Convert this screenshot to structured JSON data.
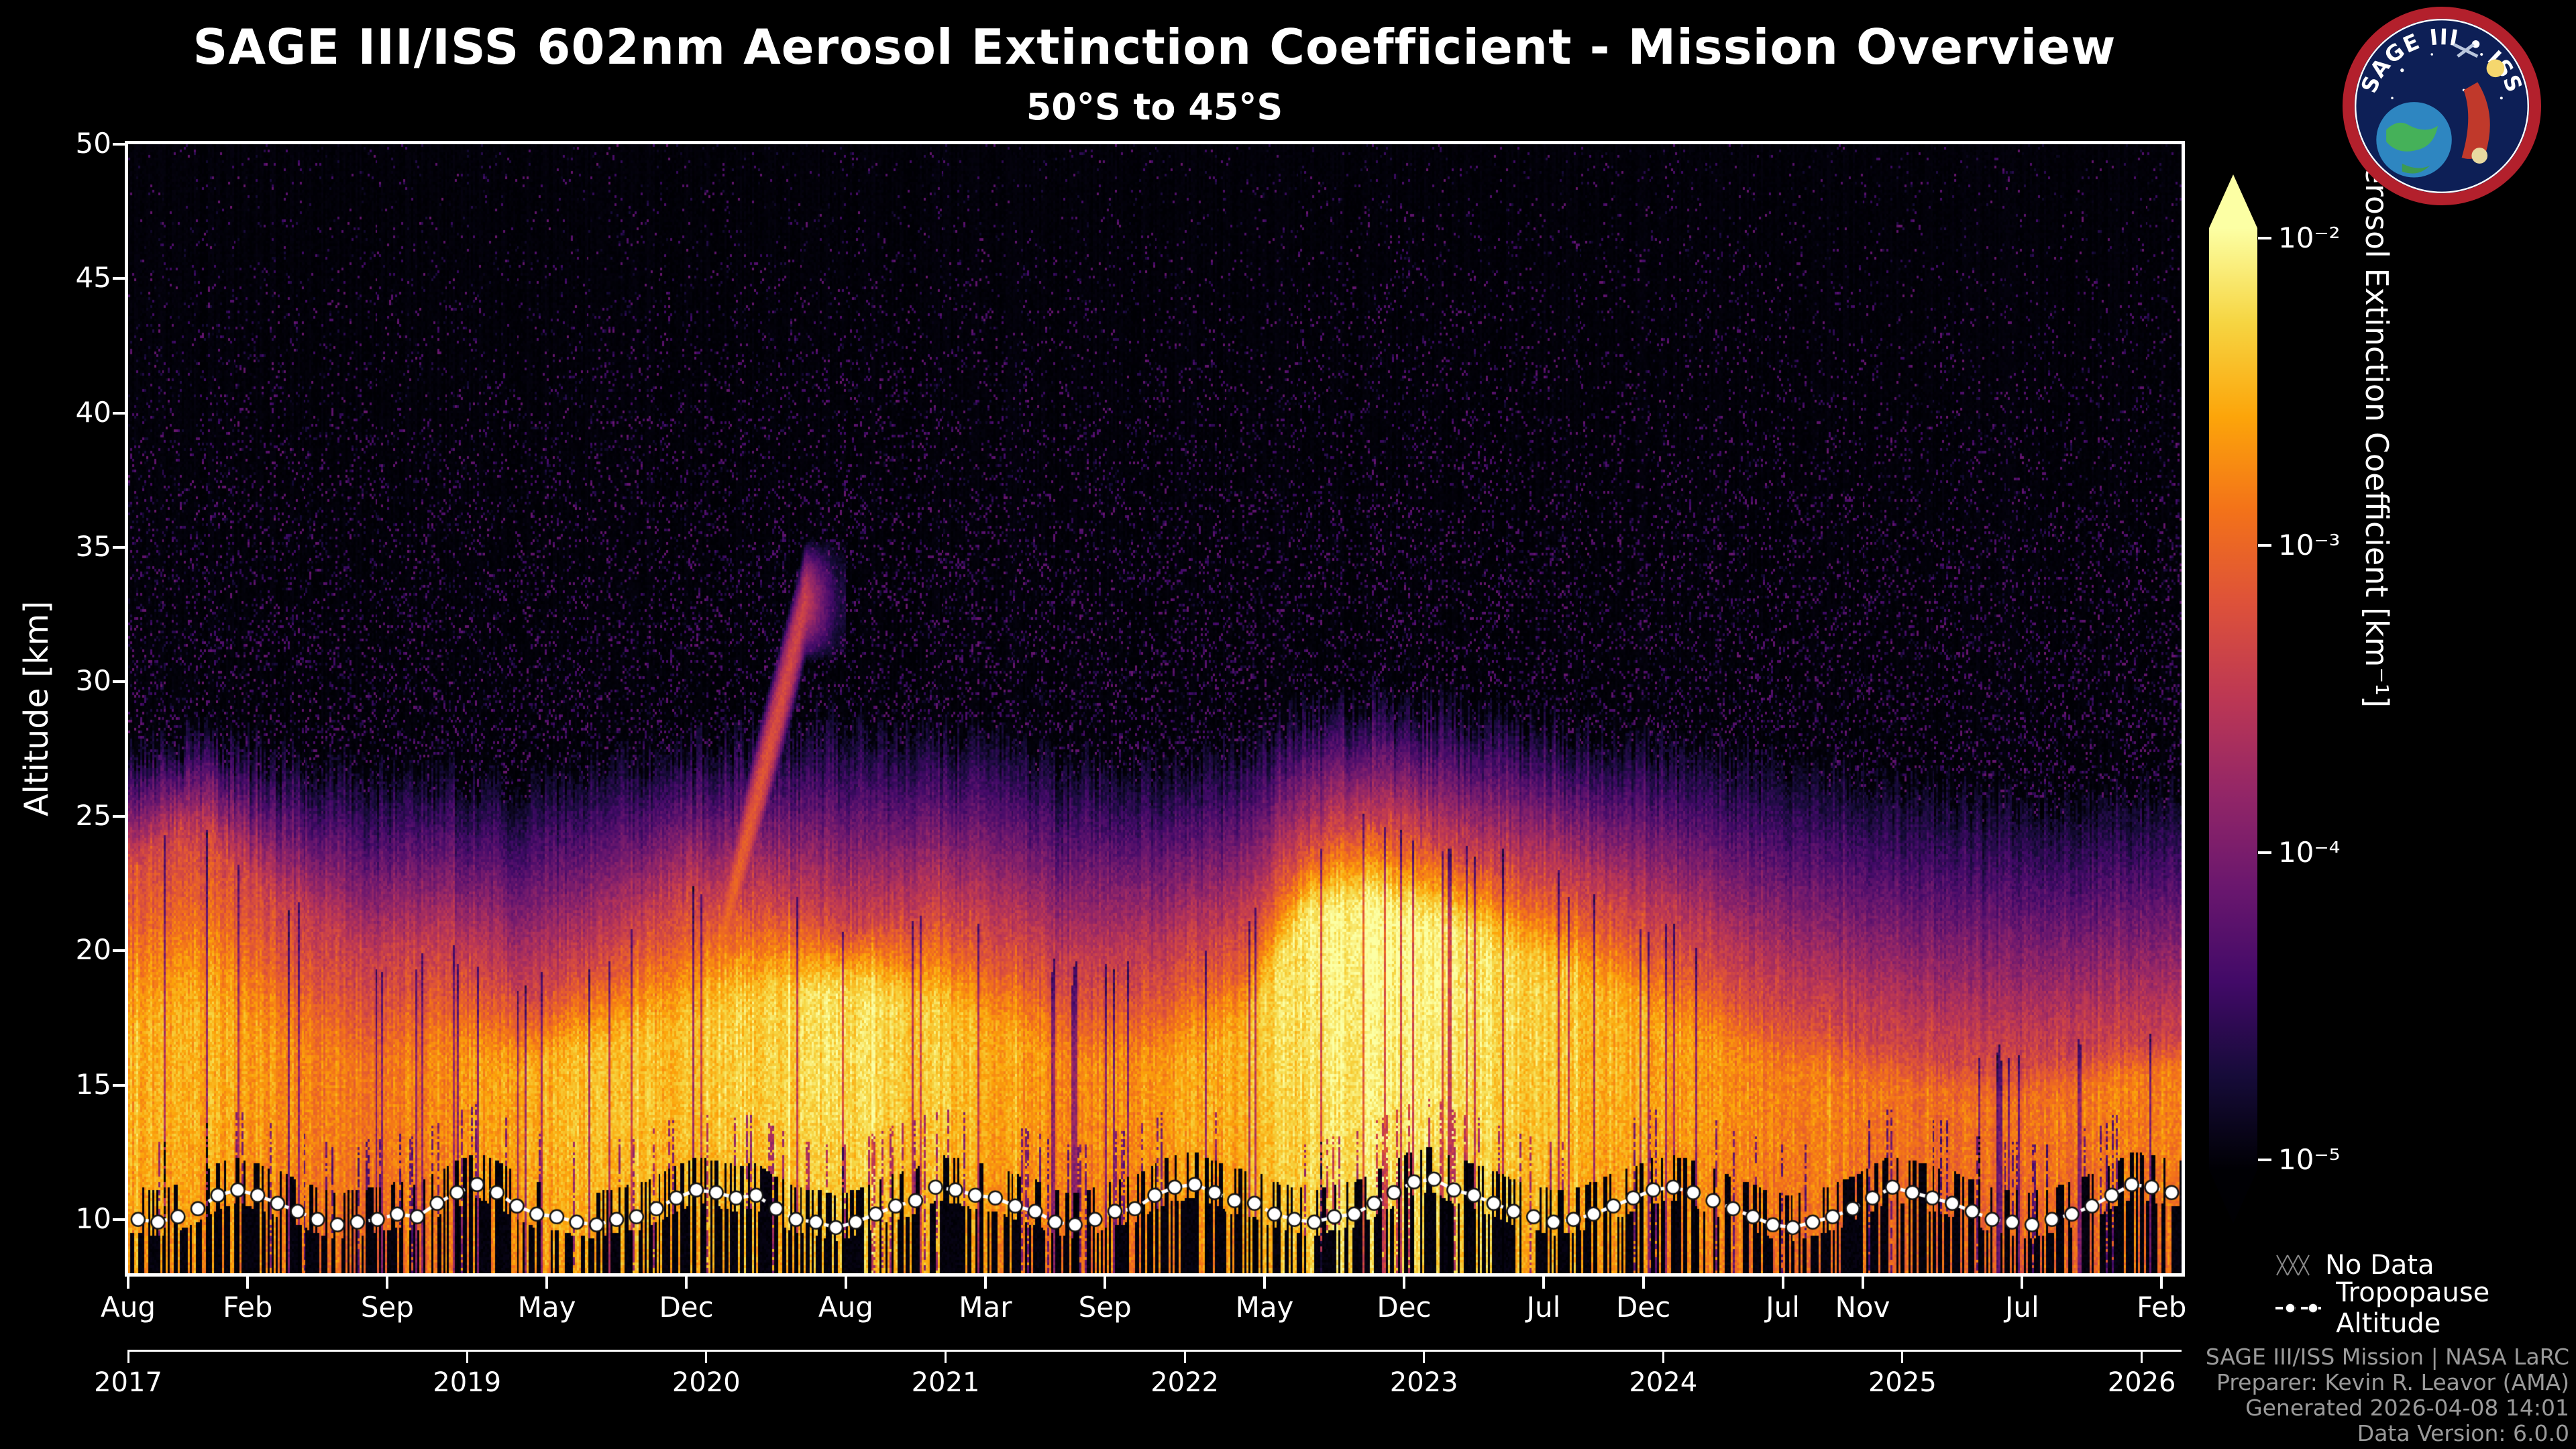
{
  "title": "SAGE III/ISS 602nm Aerosol Extinction Coefficient - Mission Overview",
  "subtitle": "50°S to 45°S",
  "logo": {
    "text": "SAGE III • ISS"
  },
  "axes": {
    "y_label": "Altitude [km]",
    "y_ticks": [
      10,
      15,
      20,
      25,
      30,
      35,
      40,
      45,
      50
    ],
    "y_range_km": [
      8,
      50
    ],
    "x_start": "2017-08",
    "x_end": "2026-02",
    "x_range_months": [
      0,
      103
    ],
    "x_month_ticks": [
      {
        "label": "Aug",
        "m": 0
      },
      {
        "label": "Feb",
        "m": 6
      },
      {
        "label": "Sep",
        "m": 13
      },
      {
        "label": "May",
        "m": 21
      },
      {
        "label": "Dec",
        "m": 28
      },
      {
        "label": "Aug",
        "m": 36
      },
      {
        "label": "Mar",
        "m": 43
      },
      {
        "label": "Sep",
        "m": 49
      },
      {
        "label": "May",
        "m": 57
      },
      {
        "label": "Dec",
        "m": 64
      },
      {
        "label": "Jul",
        "m": 71
      },
      {
        "label": "Dec",
        "m": 76
      },
      {
        "label": "Jul",
        "m": 83
      },
      {
        "label": "Nov",
        "m": 87
      },
      {
        "label": "Jul",
        "m": 95
      },
      {
        "label": "Feb",
        "m": 102
      }
    ],
    "x_year_ticks": [
      {
        "label": "2017",
        "m": 0
      },
      {
        "label": "2019",
        "m": 17
      },
      {
        "label": "2020",
        "m": 29
      },
      {
        "label": "2021",
        "m": 41
      },
      {
        "label": "2022",
        "m": 53
      },
      {
        "label": "2023",
        "m": 65
      },
      {
        "label": "2024",
        "m": 77
      },
      {
        "label": "2025",
        "m": 89
      },
      {
        "label": "2026",
        "m": 101
      }
    ]
  },
  "colorbar": {
    "label": "Aerosol Extinction Coefficient [km⁻¹]",
    "scale": "log10",
    "range_log10": [
      -5,
      -2
    ],
    "ticks": [
      {
        "label": "10⁻²",
        "log10": -2
      },
      {
        "label": "10⁻³",
        "log10": -3
      },
      {
        "label": "10⁻⁴",
        "log10": -4
      },
      {
        "label": "10⁻⁵",
        "log10": -5
      }
    ]
  },
  "legend": {
    "items": [
      {
        "icon": "no-data-hatch-icon",
        "label": "No Data"
      },
      {
        "icon": "tropopause-line-icon",
        "label": "Tropopause Altitude"
      }
    ]
  },
  "credits": [
    "SAGE III/ISS Mission | NASA LaRC",
    "Preparer: Kevin R. Leavor (AMA)",
    "Generated 2026-04-08 14:01",
    "Data Version: 6.0.0"
  ],
  "colors": {
    "background": "#000000",
    "text": "#ffffff",
    "credits_text": "#9a9a9a",
    "tropopause_marker": "#ffffff"
  },
  "chart_data": {
    "type": "heatmap",
    "title": "SAGE III/ISS 602nm Aerosol Extinction Coefficient - Mission Overview",
    "subtitle": "50°S to 45°S",
    "x": {
      "start": "2017-08",
      "end": "2026-02",
      "step": "month"
    },
    "y": {
      "min_km": 8,
      "max_km": 50
    },
    "value": "log10 aerosol extinction coefficient [km^-1]",
    "value_range_log10": [
      -5,
      -2
    ],
    "colormap": "inferno",
    "colormap_stops": [
      [
        0.0,
        [
          0,
          0,
          4
        ]
      ],
      [
        0.1,
        [
          22,
          11,
          57
        ]
      ],
      [
        0.2,
        [
          66,
          10,
          104
        ]
      ],
      [
        0.3,
        [
          106,
          23,
          110
        ]
      ],
      [
        0.4,
        [
          147,
          38,
          103
        ]
      ],
      [
        0.5,
        [
          188,
          55,
          84
        ]
      ],
      [
        0.6,
        [
          221,
          81,
          58
        ]
      ],
      [
        0.7,
        [
          243,
          114,
          25
        ]
      ],
      [
        0.8,
        [
          252,
          165,
          10
        ]
      ],
      [
        0.9,
        [
          246,
          213,
          66
        ]
      ],
      [
        1.0,
        [
          252,
          255,
          164
        ]
      ]
    ],
    "layer_keyframes": [
      {
        "m": 0,
        "peak": -2.6,
        "otop": 23.5,
        "ptop": 27.5,
        "core": 13,
        "cw": 6
      },
      {
        "m": 4,
        "peak": -2.55,
        "otop": 24.5,
        "ptop": 28,
        "core": 14,
        "cw": 6.5
      },
      {
        "m": 8,
        "peak": -2.75,
        "otop": 21.5,
        "ptop": 27,
        "core": 13,
        "cw": 5.5
      },
      {
        "m": 12,
        "peak": -2.9,
        "otop": 19.5,
        "ptop": 26.5,
        "core": 12.5,
        "cw": 5
      },
      {
        "m": 16,
        "peak": -2.75,
        "otop": 20,
        "ptop": 26.5,
        "core": 13,
        "cw": 5
      },
      {
        "m": 20,
        "peak": -2.55,
        "otop": 18.5,
        "ptop": 26,
        "core": 13,
        "cw": 4.5
      },
      {
        "m": 24,
        "peak": -2.45,
        "otop": 20,
        "ptop": 27,
        "core": 13.5,
        "cw": 5
      },
      {
        "m": 28,
        "peak": -2.45,
        "otop": 22,
        "ptop": 27.5,
        "core": 14,
        "cw": 5.5
      },
      {
        "m": 30,
        "peak": -2.3,
        "otop": 22,
        "ptop": 28,
        "core": 15,
        "cw": 5
      },
      {
        "m": 32,
        "peak": -2.35,
        "otop": 22,
        "ptop": 28,
        "core": 15,
        "cw": 5.5
      },
      {
        "m": 36,
        "peak": -2.2,
        "otop": 21,
        "ptop": 28.5,
        "core": 16,
        "cw": 4.5
      },
      {
        "m": 40,
        "peak": -2.35,
        "otop": 21.5,
        "ptop": 28,
        "core": 15,
        "cw": 5
      },
      {
        "m": 44,
        "peak": -2.65,
        "otop": 20.5,
        "ptop": 27.5,
        "core": 14,
        "cw": 5
      },
      {
        "m": 48,
        "peak": -2.8,
        "otop": 19,
        "ptop": 27,
        "core": 13,
        "cw": 4.5
      },
      {
        "m": 52,
        "peak": -2.65,
        "otop": 19.5,
        "ptop": 27,
        "core": 13,
        "cw": 4.5
      },
      {
        "m": 56,
        "peak": -2.5,
        "otop": 21,
        "ptop": 27.5,
        "core": 14,
        "cw": 5
      },
      {
        "m": 59,
        "peak": -2.15,
        "otop": 24,
        "ptop": 29,
        "core": 19,
        "cw": 4
      },
      {
        "m": 62,
        "peak": -2.0,
        "otop": 25,
        "ptop": 29.5,
        "core": 19.5,
        "cw": 3.5
      },
      {
        "m": 66,
        "peak": -2.1,
        "otop": 24,
        "ptop": 29,
        "core": 18.5,
        "cw": 4
      },
      {
        "m": 70,
        "peak": -2.3,
        "otop": 23,
        "ptop": 28.5,
        "core": 17,
        "cw": 4.5
      },
      {
        "m": 74,
        "peak": -2.5,
        "otop": 22,
        "ptop": 28,
        "core": 15.5,
        "cw": 5
      },
      {
        "m": 78,
        "peak": -2.65,
        "otop": 20.5,
        "ptop": 27.5,
        "core": 14,
        "cw": 5
      },
      {
        "m": 82,
        "peak": -2.8,
        "otop": 18.5,
        "ptop": 27,
        "core": 13,
        "cw": 4.5
      },
      {
        "m": 86,
        "peak": -2.85,
        "otop": 17.5,
        "ptop": 26.5,
        "core": 12.5,
        "cw": 4.5
      },
      {
        "m": 90,
        "peak": -2.95,
        "otop": 16.5,
        "ptop": 26,
        "core": 12.5,
        "cw": 4
      },
      {
        "m": 94,
        "peak": -3.0,
        "otop": 16,
        "ptop": 25.5,
        "core": 12,
        "cw": 4
      },
      {
        "m": 98,
        "peak": -2.85,
        "otop": 16.5,
        "ptop": 25.5,
        "core": 12.5,
        "cw": 4
      },
      {
        "m": 103,
        "peak": -2.8,
        "otop": 17,
        "ptop": 26,
        "core": 13,
        "cw": 4.5
      }
    ],
    "plume_2020": {
      "m_start": 29,
      "m_top": 34,
      "m_end": 36,
      "alt_start_km": 18,
      "alt_top_km": 33,
      "width_km": 1.3,
      "peak_log10": -2.9
    },
    "tropopause_km": [
      10.0,
      9.9,
      10.1,
      10.4,
      10.9,
      11.1,
      10.9,
      10.6,
      10.3,
      10.0,
      9.8,
      9.9,
      10.0,
      10.2,
      10.1,
      10.6,
      11.0,
      11.3,
      11.0,
      10.5,
      10.2,
      10.1,
      9.9,
      9.8,
      10.0,
      10.1,
      10.4,
      10.8,
      11.1,
      11.0,
      10.8,
      10.9,
      10.4,
      10.0,
      9.9,
      9.7,
      9.9,
      10.2,
      10.5,
      10.7,
      11.2,
      11.1,
      10.9,
      10.8,
      10.5,
      10.3,
      9.9,
      9.8,
      10.0,
      10.3,
      10.4,
      10.9,
      11.2,
      11.3,
      11.0,
      10.7,
      10.6,
      10.2,
      10.0,
      9.9,
      10.1,
      10.2,
      10.6,
      11.0,
      11.4,
      11.5,
      11.1,
      10.9,
      10.6,
      10.3,
      10.1,
      9.9,
      10.0,
      10.2,
      10.5,
      10.8,
      11.1,
      11.2,
      11.0,
      10.7,
      10.4,
      10.1,
      9.8,
      9.7,
      9.9,
      10.1,
      10.4,
      10.8,
      11.2,
      11.0,
      10.8,
      10.6,
      10.3,
      10.0,
      9.9,
      9.8,
      10.0,
      10.2,
      10.5,
      10.9,
      11.3,
      11.2,
      11.0
    ]
  }
}
